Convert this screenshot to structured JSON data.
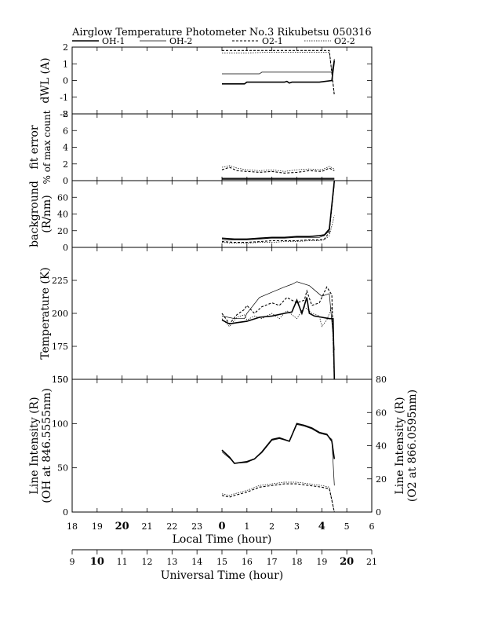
{
  "title": "Airglow Temperature Photometer No.3   Rikubetsu   050316",
  "legend": [
    {
      "name": "OH-1",
      "style": "solid-thick"
    },
    {
      "name": "OH-2",
      "style": "solid-thin"
    },
    {
      "name": "O2-1",
      "style": "dashed-thick"
    },
    {
      "name": "O2-2",
      "style": "dotted-thin"
    }
  ],
  "x_local": {
    "label": "Local Time (hour)",
    "ticks": [
      "18",
      "19",
      "20",
      "21",
      "22",
      "23",
      "0",
      "1",
      "2",
      "3",
      "4",
      "5",
      "6"
    ],
    "bold": [
      "20",
      "0",
      "4"
    ]
  },
  "x_ut": {
    "label": "Universal Time (hour)",
    "ticks": [
      "9",
      "10",
      "11",
      "12",
      "13",
      "14",
      "15",
      "16",
      "17",
      "18",
      "19",
      "20",
      "21"
    ],
    "bold": [
      "10",
      "20"
    ]
  },
  "chart_data": [
    {
      "type": "line",
      "panel": "dwl",
      "ylabel": "dWL (A)",
      "ylim": [
        -2,
        2
      ],
      "yticks": [
        "2",
        "1",
        "0",
        "-1",
        "-2"
      ],
      "x_unit": "local hours after 18",
      "series": [
        {
          "name": "OH-1",
          "x": [
            6.0,
            6.9,
            7.0,
            7.8,
            8.0,
            8.5,
            8.6,
            8.7,
            8.8,
            9.9,
            10.4,
            10.5
          ],
          "y": [
            -0.2,
            -0.2,
            -0.1,
            -0.1,
            -0.1,
            -0.1,
            -0.05,
            -0.15,
            -0.1,
            -0.1,
            0.0,
            1.2
          ]
        },
        {
          "name": "OH-2",
          "x": [
            6.0,
            7.5,
            7.6,
            10.4,
            10.5
          ],
          "y": [
            0.4,
            0.4,
            0.5,
            0.5,
            1.3
          ]
        },
        {
          "name": "O2-1",
          "x": [
            6.0,
            7.0,
            8.0,
            9.0,
            10.3,
            10.5
          ],
          "y": [
            1.8,
            1.8,
            1.8,
            1.8,
            1.8,
            -0.9
          ]
        },
        {
          "name": "O2-2",
          "x": [
            6.0,
            7.0,
            8.0,
            9.0,
            10.3,
            10.5
          ],
          "y": [
            1.65,
            1.65,
            1.7,
            1.7,
            1.7,
            -0.8
          ]
        }
      ]
    },
    {
      "type": "line",
      "panel": "fit_error",
      "ylabel": "fit error",
      "ylabel2": "% of max count",
      "ylim": [
        0,
        8
      ],
      "yticks": [
        "8",
        "6",
        "4",
        "2",
        "0"
      ],
      "x_unit": "local hours after 18",
      "series": [
        {
          "name": "OH-1",
          "x": [
            6.0,
            7.0,
            8.0,
            9.0,
            10.0,
            10.5
          ],
          "y": [
            0.2,
            0.2,
            0.2,
            0.2,
            0.2,
            0.2
          ]
        },
        {
          "name": "OH-2",
          "x": [
            6.0,
            7.0,
            8.0,
            9.0,
            10.0,
            10.5
          ],
          "y": [
            0.3,
            0.3,
            0.3,
            0.3,
            0.3,
            0.3
          ]
        },
        {
          "name": "O2-1",
          "x": [
            6.0,
            6.3,
            6.6,
            7.0,
            7.5,
            8.0,
            8.5,
            9.0,
            9.5,
            10.0,
            10.3,
            10.5
          ],
          "y": [
            1.3,
            1.6,
            1.2,
            1.1,
            1.0,
            1.1,
            0.9,
            1.0,
            1.2,
            1.1,
            1.5,
            1.2
          ]
        },
        {
          "name": "O2-2",
          "x": [
            6.0,
            6.3,
            6.6,
            7.0,
            7.5,
            8.0,
            8.5,
            9.0,
            9.5,
            10.0,
            10.3,
            10.5
          ],
          "y": [
            1.6,
            1.8,
            1.5,
            1.3,
            1.2,
            1.3,
            1.1,
            1.3,
            1.4,
            1.3,
            1.7,
            1.4
          ]
        }
      ]
    },
    {
      "type": "line",
      "panel": "background",
      "ylabel": "background",
      "ylabel2": "(R/nm)",
      "ylim": [
        0,
        80
      ],
      "yticks": [
        "60",
        "40",
        "20",
        "0"
      ],
      "x_unit": "local hours after 18",
      "series": [
        {
          "name": "OH-1",
          "x": [
            6.0,
            6.5,
            7.0,
            7.5,
            8.0,
            8.5,
            9.0,
            9.5,
            9.9,
            10.1,
            10.3,
            10.5
          ],
          "y": [
            11,
            10,
            10,
            11,
            12,
            12,
            13,
            13,
            14,
            15,
            22,
            80
          ]
        },
        {
          "name": "OH-2",
          "x": [
            6.0,
            6.5,
            7.0,
            7.5,
            8.0,
            8.5,
            9.0,
            9.5,
            9.9,
            10.1,
            10.3,
            10.5
          ],
          "y": [
            9,
            9,
            9,
            10,
            11,
            11,
            12,
            12,
            12,
            14,
            20,
            75
          ]
        },
        {
          "name": "O2-1",
          "x": [
            6.0,
            6.5,
            7.0,
            7.5,
            8.0,
            8.5,
            9.0,
            9.5,
            9.9,
            10.1,
            10.3,
            10.5
          ],
          "y": [
            7,
            6,
            6,
            7,
            8,
            8,
            8,
            9,
            9,
            10,
            18,
            80
          ]
        },
        {
          "name": "O2-2",
          "x": [
            6.0,
            6.5,
            7.0,
            7.5,
            8.0,
            8.5,
            9.0,
            9.5,
            9.9,
            10.1,
            10.3,
            10.5
          ],
          "y": [
            6,
            5,
            5,
            6,
            6,
            7,
            7,
            8,
            8,
            9,
            14,
            38
          ]
        }
      ]
    },
    {
      "type": "line",
      "panel": "temperature",
      "ylabel": "Temperature (K)",
      "ylim": [
        150,
        250
      ],
      "yticks": [
        "225",
        "200",
        "175",
        "150"
      ],
      "x_unit": "local hours after 18",
      "series": [
        {
          "name": "OH-1",
          "x": [
            6.0,
            6.3,
            6.6,
            7.0,
            7.5,
            8.0,
            8.5,
            8.8,
            9.0,
            9.2,
            9.4,
            9.5,
            9.7,
            10.0,
            10.3,
            10.45,
            10.5
          ],
          "y": [
            195,
            192,
            193,
            194,
            197,
            198,
            200,
            201,
            210,
            200,
            212,
            200,
            198,
            197,
            196,
            196,
            150
          ]
        },
        {
          "name": "OH-2",
          "x": [
            6.0,
            6.5,
            6.9,
            7.0,
            7.5,
            8.0,
            8.5,
            8.8,
            9.0,
            9.5,
            10.0,
            10.3,
            10.5
          ],
          "y": [
            198,
            196,
            196,
            200,
            212,
            216,
            220,
            222,
            224,
            221,
            213,
            215,
            172
          ]
        },
        {
          "name": "O2-1",
          "x": [
            6.0,
            6.3,
            6.6,
            6.9,
            7.0,
            7.3,
            7.6,
            8.0,
            8.3,
            8.6,
            9.0,
            9.3,
            9.4,
            9.6,
            9.9,
            10.0,
            10.2,
            10.4,
            10.5
          ],
          "y": [
            200,
            192,
            199,
            203,
            206,
            200,
            205,
            208,
            206,
            212,
            208,
            210,
            217,
            206,
            208,
            212,
            220,
            214,
            150
          ]
        },
        {
          "name": "O2-2",
          "x": [
            6.0,
            6.3,
            6.6,
            6.9,
            7.0,
            7.3,
            7.6,
            8.0,
            8.3,
            8.6,
            9.0,
            9.3,
            9.6,
            9.9,
            10.0,
            10.2,
            10.4,
            10.5
          ],
          "y": [
            196,
            190,
            197,
            199,
            195,
            198,
            196,
            200,
            196,
            202,
            196,
            205,
            200,
            198,
            190,
            195,
            205,
            150
          ]
        }
      ]
    },
    {
      "type": "line",
      "panel": "intensity",
      "ylabel": "Line Intensity (R)",
      "ylabel2": "(OH at 846.5555nm)",
      "ylabel_right": "Line Intensity (R)",
      "ylabel_right2": "(O2 at 866.0595nm)",
      "ylim": [
        0,
        150
      ],
      "ylim_right": [
        0,
        80
      ],
      "yticks": [
        "150",
        "100",
        "50",
        "0"
      ],
      "yticks_right": [
        "80",
        "60",
        "40",
        "20",
        "0"
      ],
      "x_unit": "local hours after 18",
      "series": [
        {
          "name": "OH-1",
          "x": [
            6.0,
            6.3,
            6.5,
            7.0,
            7.3,
            7.6,
            8.0,
            8.3,
            8.7,
            9.0,
            9.3,
            9.6,
            9.9,
            10.2,
            10.4,
            10.5
          ],
          "y": [
            70,
            62,
            55,
            57,
            60,
            68,
            82,
            84,
            80,
            100,
            98,
            95,
            90,
            88,
            80,
            60
          ]
        },
        {
          "name": "OH-2",
          "x": [
            6.0,
            6.3,
            6.5,
            7.0,
            7.3,
            7.6,
            8.0,
            8.3,
            8.7,
            9.0,
            9.3,
            9.6,
            9.9,
            10.2,
            10.4,
            10.5
          ],
          "y": [
            68,
            61,
            55,
            56,
            60,
            67,
            81,
            83,
            80,
            99,
            97,
            94,
            89,
            87,
            82,
            30
          ]
        },
        {
          "name": "O2-1",
          "axis": "right",
          "x": [
            6.0,
            6.3,
            6.5,
            7.0,
            7.5,
            8.0,
            8.5,
            9.0,
            9.5,
            10.0,
            10.3,
            10.5
          ],
          "y": [
            10,
            9,
            10,
            12,
            15,
            16,
            17,
            17,
            16,
            15,
            14,
            0
          ]
        },
        {
          "name": "O2-2",
          "axis": "right",
          "x": [
            6.0,
            6.3,
            6.5,
            7.0,
            7.5,
            8.0,
            8.5,
            9.0,
            9.5,
            10.0,
            10.3,
            10.5
          ],
          "y": [
            11,
            10,
            11,
            13,
            16,
            17,
            18,
            18,
            17,
            16,
            15,
            0
          ]
        }
      ]
    }
  ]
}
